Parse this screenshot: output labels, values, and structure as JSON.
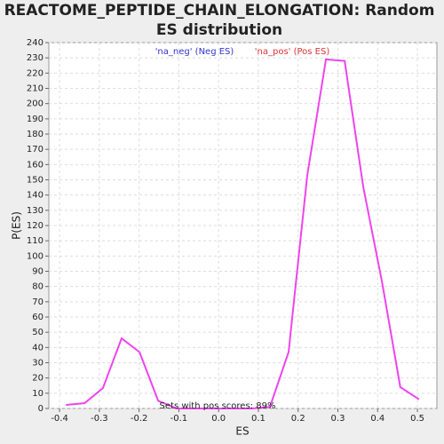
{
  "chart_data": {
    "type": "line",
    "title_lines": [
      "REACTOME_PEPTIDE_CHAIN_ELONGATION: Random",
      "ES distribution"
    ],
    "xlabel": "ES",
    "ylabel": "P(ES)",
    "legend": [
      {
        "label": "'na_neg' (Neg ES)",
        "color": "#3333cc"
      },
      {
        "label": "'na_pos' (Pos ES)",
        "color": "#dd3333"
      }
    ],
    "annotation": "Sets with pos scores: 89%",
    "color": "#ee44ee",
    "x": [
      -0.384,
      -0.337,
      -0.291,
      -0.244,
      -0.199,
      -0.152,
      -0.105,
      -0.058,
      -0.011,
      0.036,
      0.083,
      0.129,
      0.176,
      0.223,
      0.27,
      0.317,
      0.364,
      0.411,
      0.457,
      0.504
    ],
    "values": [
      2.3,
      3.5,
      13.4,
      46,
      37,
      5,
      0,
      0,
      0,
      0,
      0,
      1,
      37,
      153,
      229,
      228,
      145,
      83,
      14,
      6
    ],
    "xlim": [
      -0.427,
      0.549
    ],
    "ylim": [
      0,
      240
    ],
    "xticks": [
      -0.4,
      -0.3,
      -0.2,
      -0.1,
      {
        "value": 0,
        "label": "0.0"
      },
      0.1,
      0.2,
      0.3,
      0.4,
      0.5
    ],
    "yticks": [
      0,
      10,
      20,
      30,
      40,
      50,
      60,
      70,
      80,
      90,
      100,
      110,
      120,
      130,
      140,
      150,
      160,
      170,
      180,
      190,
      200,
      210,
      220,
      230,
      240
    ],
    "grid": true
  }
}
